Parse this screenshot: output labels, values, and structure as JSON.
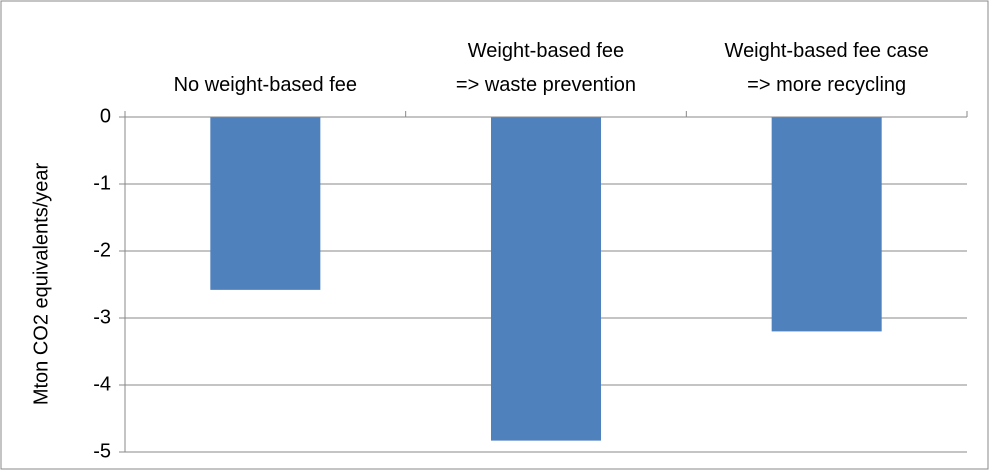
{
  "chart_data": {
    "type": "bar",
    "y_label": "Mton CO2 equivalents/year",
    "categories": [
      "No weight-based fee",
      "Weight-based fee\n=> waste prevention",
      "Weight-based fee case\n=> more recycling"
    ],
    "values": [
      -2.58,
      -4.83,
      -3.2
    ],
    "color": "#4f81bd",
    "ylim": [
      -5,
      0
    ],
    "yticks": [
      0,
      -1,
      -2,
      -3,
      -4,
      -5
    ],
    "grid": true
  }
}
